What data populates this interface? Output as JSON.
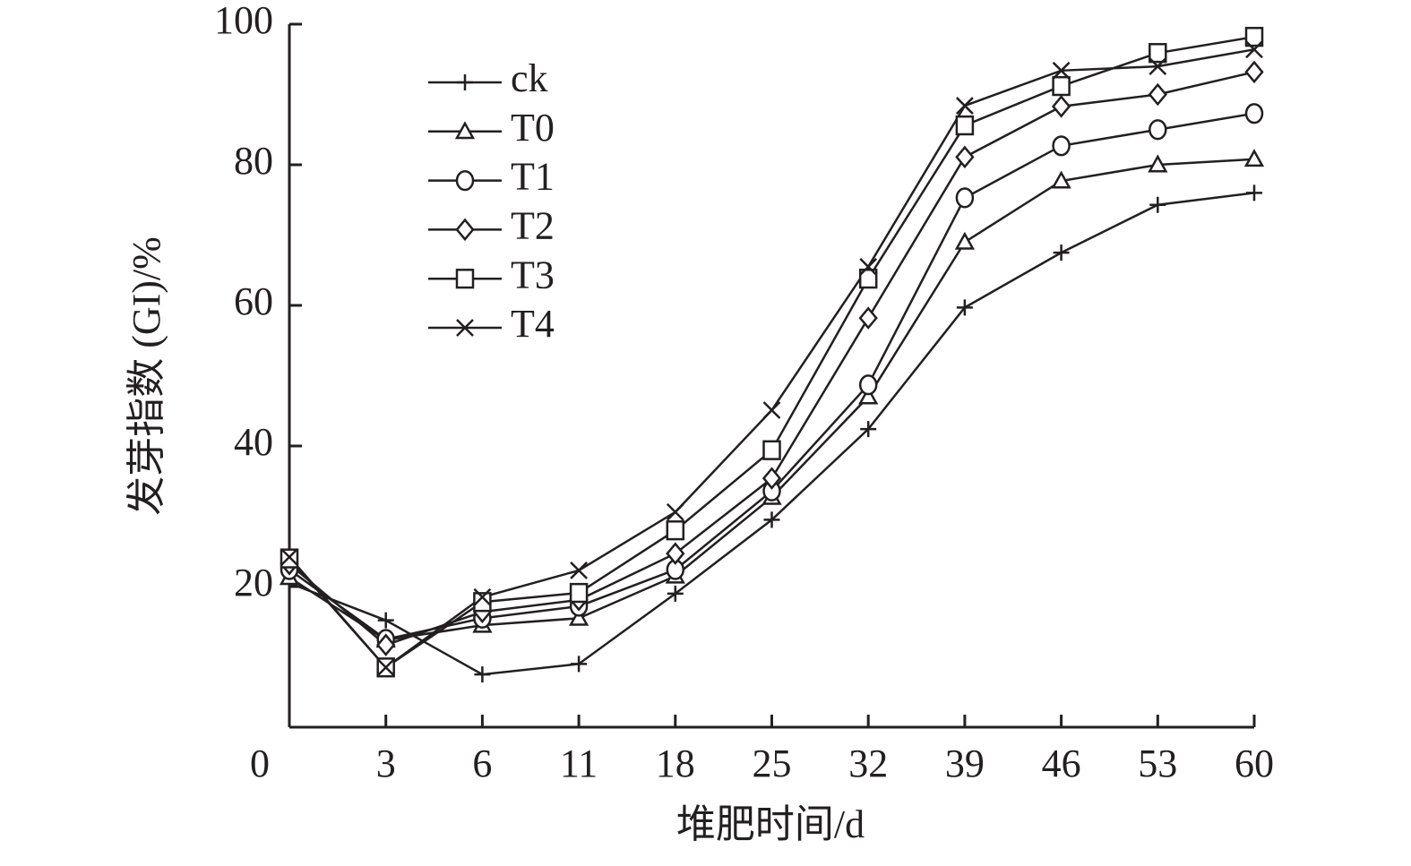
{
  "chart_data": {
    "type": "line",
    "x_label": "堆肥时间/d",
    "y_label": "发芽指数 (GI)/%",
    "categories": [
      "0",
      "3",
      "6",
      "11",
      "18",
      "25",
      "32",
      "39",
      "46",
      "53",
      "60"
    ],
    "ylim": [
      0,
      100
    ],
    "yticks": [
      20,
      40,
      60,
      80,
      100
    ],
    "legend": "upper left",
    "series": [
      {
        "name": "ck",
        "color": "#231f20",
        "marker": "plus",
        "values": [
          20.5,
          15.2,
          7.5,
          9,
          19,
          29.5,
          42.4,
          59.7,
          67.5,
          74.3,
          76
        ]
      },
      {
        "name": "T0",
        "color": "#231f20",
        "marker": "triangle",
        "values": [
          21.3,
          12.4,
          14.5,
          15.5,
          21.5,
          32.7,
          47,
          69,
          77.7,
          80,
          80.8
        ]
      },
      {
        "name": "T1",
        "color": "#231f20",
        "marker": "circle",
        "values": [
          22.4,
          12.5,
          15.5,
          17.2,
          22.4,
          33.6,
          48.7,
          75.3,
          82.7,
          85,
          87.3
        ]
      },
      {
        "name": "T2",
        "color": "#231f20",
        "marker": "diamond",
        "values": [
          23.2,
          11.7,
          16.4,
          18.1,
          24.7,
          35.4,
          58.2,
          81.1,
          88.3,
          90,
          93.2
        ]
      },
      {
        "name": "T3",
        "color": "#231f20",
        "marker": "square",
        "values": [
          24,
          8.5,
          17.8,
          19.1,
          28,
          39.4,
          63.8,
          85.6,
          91.2,
          95.9,
          98.2
        ]
      },
      {
        "name": "T4",
        "color": "#231f20",
        "marker": "cross",
        "values": [
          24.2,
          8.5,
          18.5,
          22.3,
          30.6,
          45.1,
          65.5,
          88.4,
          93.4,
          94,
          96.4
        ]
      }
    ]
  }
}
